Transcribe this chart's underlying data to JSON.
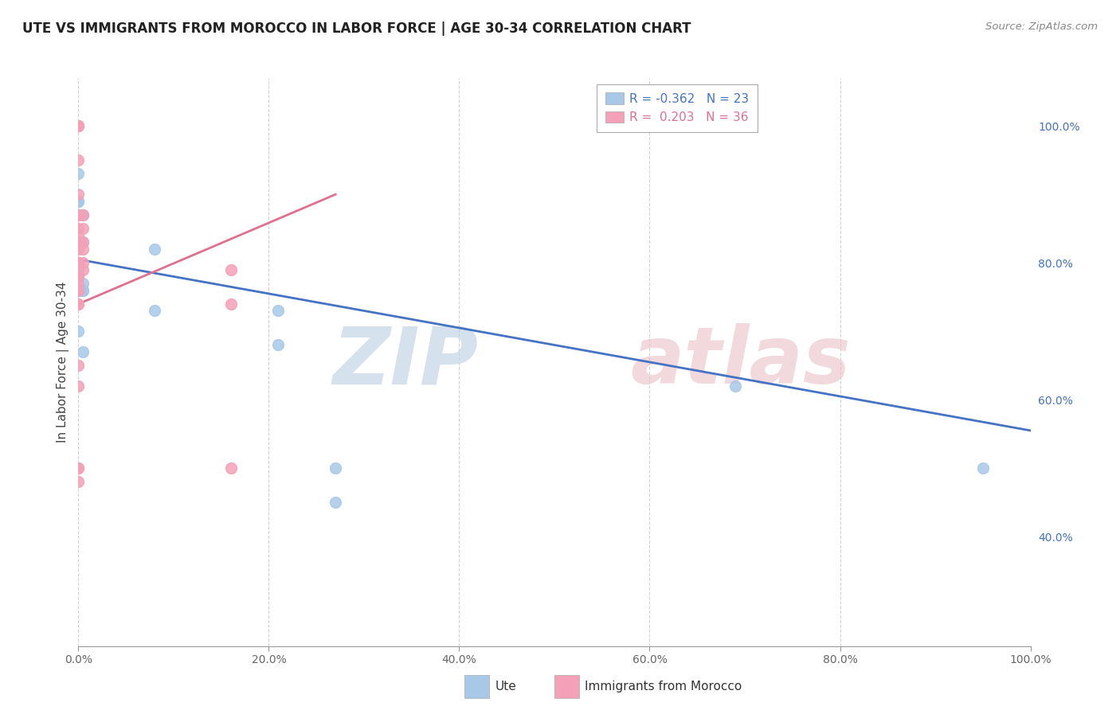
{
  "title": "UTE VS IMMIGRANTS FROM MOROCCO IN LABOR FORCE | AGE 30-34 CORRELATION CHART",
  "source": "Source: ZipAtlas.com",
  "ylabel": "In Labor Force | Age 30-34",
  "xlim": [
    0.0,
    1.0
  ],
  "ylim": [
    0.24,
    1.07
  ],
  "ute_color": "#a8c8e8",
  "morocco_color": "#f4a0b8",
  "ute_line_color": "#4472c4",
  "morocco_line_color": "#e07090",
  "R_ute": -0.362,
  "N_ute": 23,
  "R_morocco": 0.203,
  "N_morocco": 36,
  "ute_x": [
    0.0,
    0.0,
    0.0,
    0.0,
    0.0,
    0.0,
    0.0,
    0.0,
    0.005,
    0.005,
    0.005,
    0.005,
    0.005,
    0.005,
    0.005,
    0.08,
    0.08,
    0.21,
    0.21,
    0.69,
    0.95,
    0.27,
    0.27
  ],
  "ute_y": [
    0.83,
    0.79,
    0.89,
    0.89,
    0.89,
    0.93,
    0.76,
    0.7,
    0.77,
    0.83,
    0.87,
    0.87,
    0.67,
    0.76,
    0.76,
    0.82,
    0.73,
    0.73,
    0.68,
    0.62,
    0.5,
    0.5,
    0.45
  ],
  "morocco_x": [
    0.0,
    0.0,
    0.0,
    0.0,
    0.0,
    0.0,
    0.0,
    0.0,
    0.0,
    0.0,
    0.0,
    0.0,
    0.0,
    0.0,
    0.0,
    0.0,
    0.0,
    0.0,
    0.0,
    0.0,
    0.0,
    0.0,
    0.0,
    0.0,
    0.0,
    0.0,
    0.0,
    0.005,
    0.005,
    0.005,
    0.005,
    0.005,
    0.005,
    0.16,
    0.16,
    0.16
  ],
  "morocco_y": [
    1.0,
    1.0,
    1.0,
    1.0,
    0.95,
    0.9,
    0.87,
    0.87,
    0.85,
    0.84,
    0.83,
    0.82,
    0.8,
    0.8,
    0.8,
    0.78,
    0.78,
    0.77,
    0.76,
    0.74,
    0.65,
    0.62,
    0.5,
    0.5,
    0.48,
    0.76,
    0.74,
    0.87,
    0.85,
    0.83,
    0.82,
    0.8,
    0.79,
    0.79,
    0.74,
    0.5
  ],
  "ute_trendline_x": [
    0.0,
    1.0
  ],
  "ute_trendline_y": [
    0.805,
    0.555
  ],
  "morocco_trendline_x": [
    0.0,
    0.27
  ],
  "morocco_trendline_y": [
    0.74,
    0.9
  ],
  "ytick_right_positions": [
    0.4,
    0.6,
    0.8,
    1.0
  ],
  "ytick_right_labels": [
    "40.0%",
    "60.0%",
    "80.0%",
    "100.0%"
  ],
  "xtick_positions": [
    0.0,
    0.2,
    0.4,
    0.6,
    0.8,
    1.0
  ],
  "xtick_labels_bottom": [
    "0.0%",
    "20.0%",
    "40.0%",
    "60.0%",
    "80.0%",
    "100.0%"
  ],
  "legend_R_ute_color": "#4472c4",
  "legend_R_morocco_color": "#e07090",
  "watermark_zip_color": "#c5d5e8",
  "watermark_atlas_color": "#e8c0c8"
}
